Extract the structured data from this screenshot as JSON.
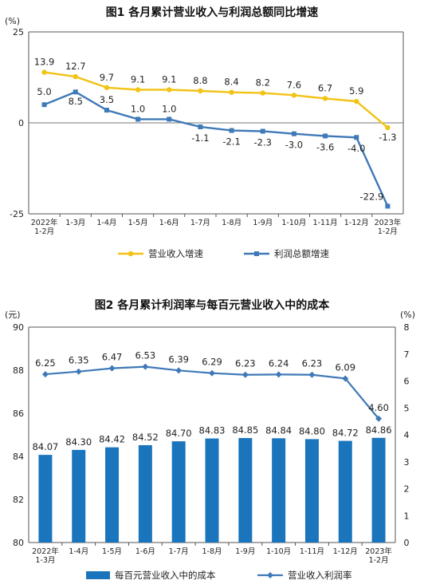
{
  "chart_data": [
    {
      "type": "line",
      "title": "图1  各月累计营业收入与利润总额同比增速",
      "y_unit": "(%)",
      "ylim": [
        -25,
        25
      ],
      "y_ticks": [
        "25",
        "0",
        "-25"
      ],
      "categories": [
        [
          "2022年",
          "1-2月"
        ],
        [
          "1-3月"
        ],
        [
          "1-4月"
        ],
        [
          "1-5月"
        ],
        [
          "1-6月"
        ],
        [
          "1-7月"
        ],
        [
          "1-8月"
        ],
        [
          "1-9月"
        ],
        [
          "1-10月"
        ],
        [
          "1-11月"
        ],
        [
          "1-12月"
        ],
        [
          "2023年",
          "1-2月"
        ]
      ],
      "series": [
        {
          "name": "营业收入增速",
          "color": "#f2c316",
          "values": [
            13.9,
            12.7,
            9.7,
            9.1,
            9.1,
            8.8,
            8.4,
            8.2,
            7.6,
            6.7,
            5.9,
            -1.3
          ],
          "labels": [
            "13.9",
            "12.7",
            "9.7",
            "9.1",
            "9.1",
            "8.8",
            "8.4",
            "8.2",
            "7.6",
            "6.7",
            "5.9",
            "-1.3"
          ]
        },
        {
          "name": "利润总额增速",
          "color": "#3f79b7",
          "values": [
            5.0,
            8.5,
            3.5,
            1.0,
            1.0,
            -1.1,
            -2.1,
            -2.3,
            -3.0,
            -3.6,
            -4.0,
            -22.9
          ],
          "labels": [
            "5.0",
            "8.5",
            "3.5",
            "1.0",
            "1.0",
            "-1.1",
            "-2.1",
            "-2.3",
            "-3.0",
            "-3.6",
            "-4.0",
            "-22.9"
          ]
        }
      ],
      "grid": false,
      "legend": "bottom"
    },
    {
      "type": "bar",
      "title": "图2  各月累计利润率与每百元营业收入中的成本",
      "y_unit_left": "(元)",
      "y_unit_right": "(%)",
      "ylim_left": [
        80,
        90
      ],
      "ylim_right": [
        0,
        8
      ],
      "y_ticks_left": [
        "90",
        "88",
        "86",
        "84",
        "82",
        "80"
      ],
      "y_ticks_right": [
        "8",
        "7",
        "6",
        "5",
        "4",
        "3",
        "2",
        "1",
        "0"
      ],
      "categories": [
        [
          "2022年",
          "1-3月"
        ],
        [
          "1-4月"
        ],
        [
          "1-5月"
        ],
        [
          "1-6月"
        ],
        [
          "1-7月"
        ],
        [
          "1-8月"
        ],
        [
          "1-9月"
        ],
        [
          "1-10月"
        ],
        [
          "1-11月"
        ],
        [
          "1-12月"
        ],
        [
          "2023年",
          "1-2月"
        ]
      ],
      "series": [
        {
          "name": "每百元营业收入中的成本",
          "kind": "bar",
          "axis": "left",
          "color": "#1b75bc",
          "values": [
            84.07,
            84.3,
            84.42,
            84.52,
            84.7,
            84.83,
            84.85,
            84.84,
            84.8,
            84.72,
            84.86
          ],
          "labels": [
            "84.07",
            "84.30",
            "84.42",
            "84.52",
            "84.70",
            "84.83",
            "84.85",
            "84.84",
            "84.80",
            "84.72",
            "84.86"
          ]
        },
        {
          "name": "营业收入利润率",
          "kind": "line",
          "axis": "right",
          "color": "#3f79b7",
          "values": [
            6.25,
            6.35,
            6.47,
            6.53,
            6.39,
            6.29,
            6.23,
            6.24,
            6.23,
            6.09,
            4.6
          ],
          "labels": [
            "6.25",
            "6.35",
            "6.47",
            "6.53",
            "6.39",
            "6.29",
            "6.23",
            "6.24",
            "6.23",
            "6.09",
            "4.60"
          ]
        }
      ],
      "grid": false,
      "legend": "bottom"
    }
  ]
}
